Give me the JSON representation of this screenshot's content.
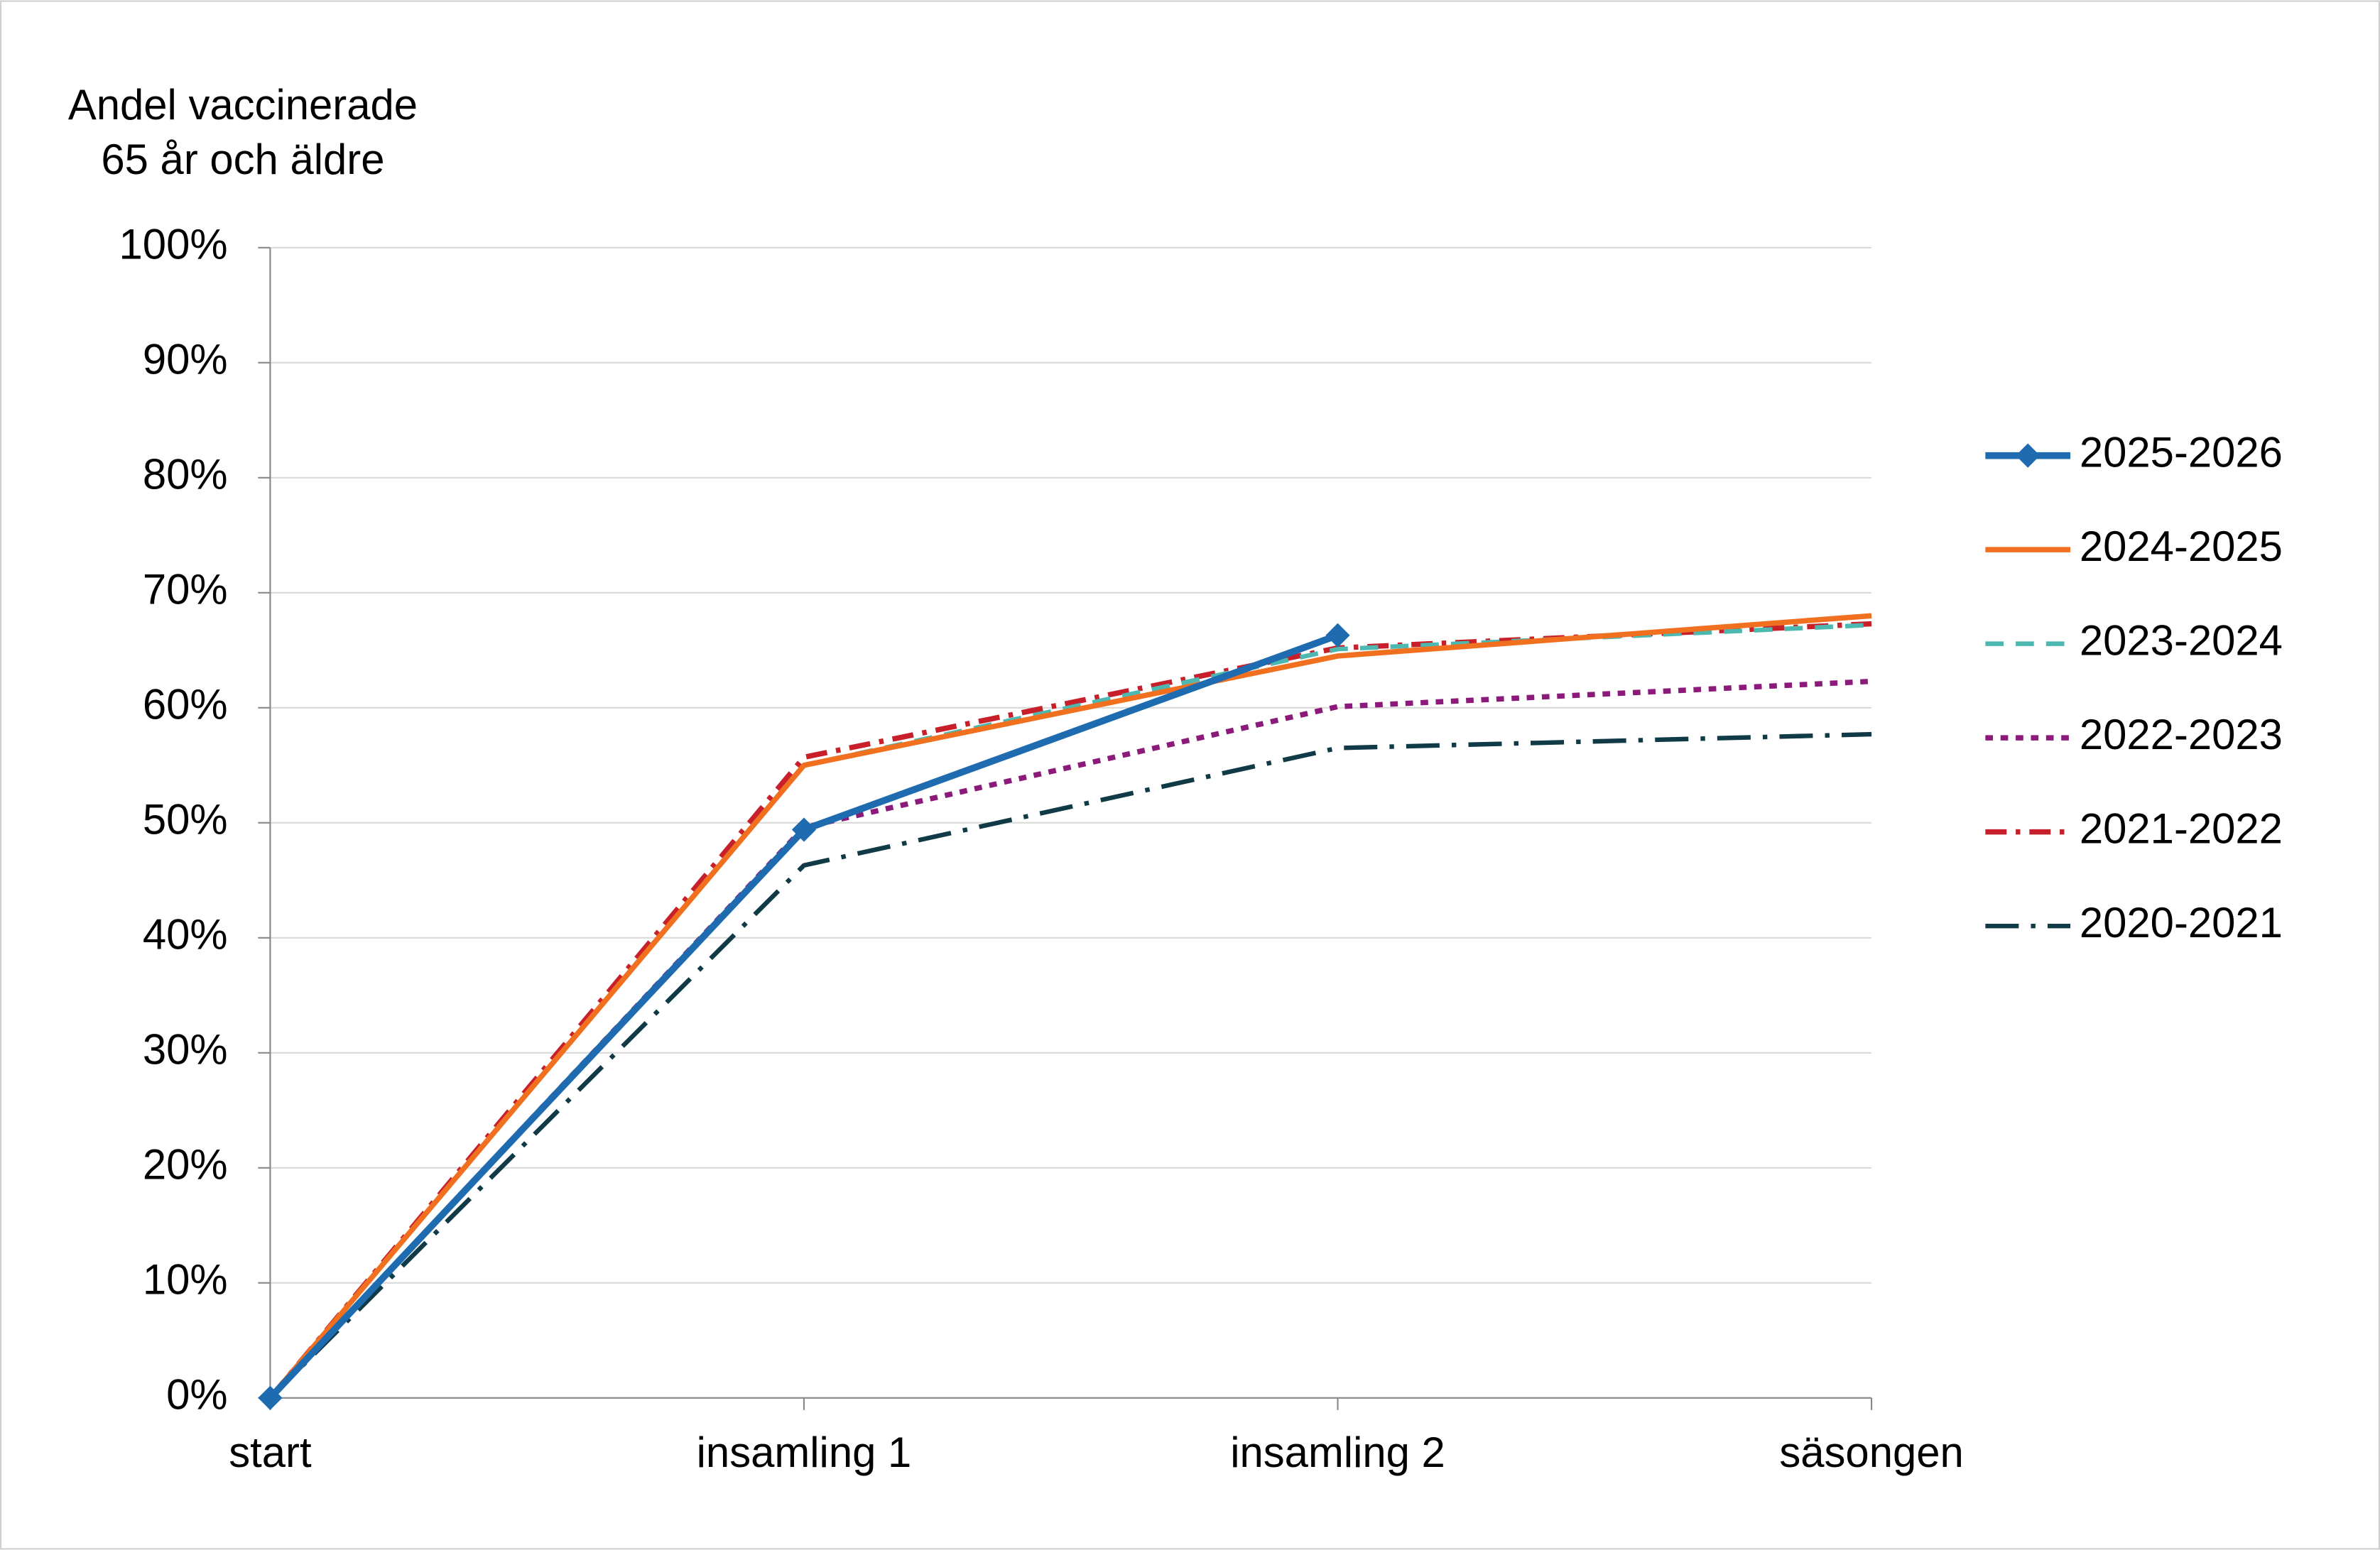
{
  "chart_data": {
    "type": "line",
    "y_axis_title": [
      "Andel vaccinerade",
      "65 år och äldre"
    ],
    "categories": [
      "start",
      "insamling 1",
      "insamling 2",
      "säsongen"
    ],
    "series": [
      {
        "name": "2025-2026",
        "color": "#1f6bb0",
        "dash": "solid",
        "marker": "diamond",
        "width": 4.5,
        "values": [
          0,
          49.4,
          66.3,
          null
        ]
      },
      {
        "name": "2024-2025",
        "color": "#f07020",
        "dash": "solid",
        "marker": "none",
        "width": 3.5,
        "values": [
          0,
          55.0,
          64.5,
          68.0
        ]
      },
      {
        "name": "2023-2024",
        "color": "#4cb8b0",
        "dash": "dashed",
        "marker": "none",
        "width": 3,
        "values": [
          0,
          55.0,
          65.1,
          67.2
        ]
      },
      {
        "name": "2022-2023",
        "color": "#8b1a7a",
        "dash": "dotted",
        "marker": "none",
        "width": 3.5,
        "values": [
          0,
          49.6,
          60.1,
          62.3
        ]
      },
      {
        "name": "2021-2022",
        "color": "#c8202a",
        "dash": "dashdot",
        "marker": "none",
        "width": 3.5,
        "values": [
          0,
          55.7,
          65.2,
          67.3
        ]
      },
      {
        "name": "2020-2021",
        "color": "#0f3a46",
        "dash": "longdashdot",
        "marker": "none",
        "width": 3,
        "values": [
          0,
          46.3,
          56.5,
          57.7
        ]
      }
    ],
    "ylim": [
      0,
      100
    ],
    "yticks": [
      {
        "value": 0,
        "label": "0%"
      },
      {
        "value": 10,
        "label": "10%"
      },
      {
        "value": 20,
        "label": "20%"
      },
      {
        "value": 30,
        "label": "30%"
      },
      {
        "value": 40,
        "label": "40%"
      },
      {
        "value": 50,
        "label": "50%"
      },
      {
        "value": 60,
        "label": "60%"
      },
      {
        "value": 70,
        "label": "70%"
      },
      {
        "value": 80,
        "label": "80%"
      },
      {
        "value": 90,
        "label": "90%"
      },
      {
        "value": 100,
        "label": "100%"
      }
    ],
    "grid": true,
    "legend": "right"
  }
}
